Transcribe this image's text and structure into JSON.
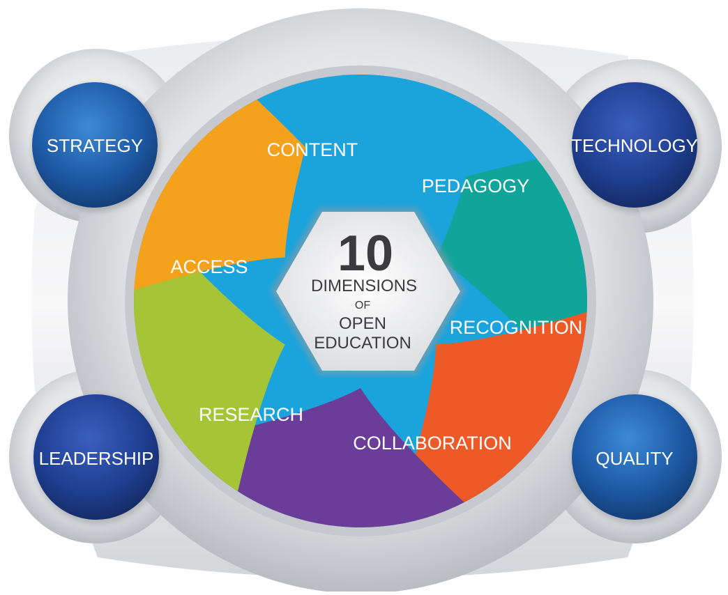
{
  "center": {
    "number": "10",
    "line1": "DIMENSIONS",
    "line2": "OF",
    "line3": "OPEN",
    "line4": "EDUCATION"
  },
  "core_dimensions": [
    {
      "label": "CONTENT",
      "color": "#1ba3dc"
    },
    {
      "label": "PEDAGOGY",
      "color": "#10a59b"
    },
    {
      "label": "RECOGNITION",
      "color": "#ee5a27"
    },
    {
      "label": "COLLABORATION",
      "color": "#6a3d98"
    },
    {
      "label": "RESEARCH",
      "color": "#a5c536"
    },
    {
      "label": "ACCESS",
      "color": "#f4a21c"
    }
  ],
  "transversal_dimensions": [
    {
      "label": "STRATEGY"
    },
    {
      "label": "TECHNOLOGY"
    },
    {
      "label": "LEADERSHIP"
    },
    {
      "label": "QUALITY"
    }
  ],
  "colors": {
    "blue_circle": "#1d5aa6",
    "dark_circle": "#1a3d8c",
    "silver": "#d4d6da"
  }
}
